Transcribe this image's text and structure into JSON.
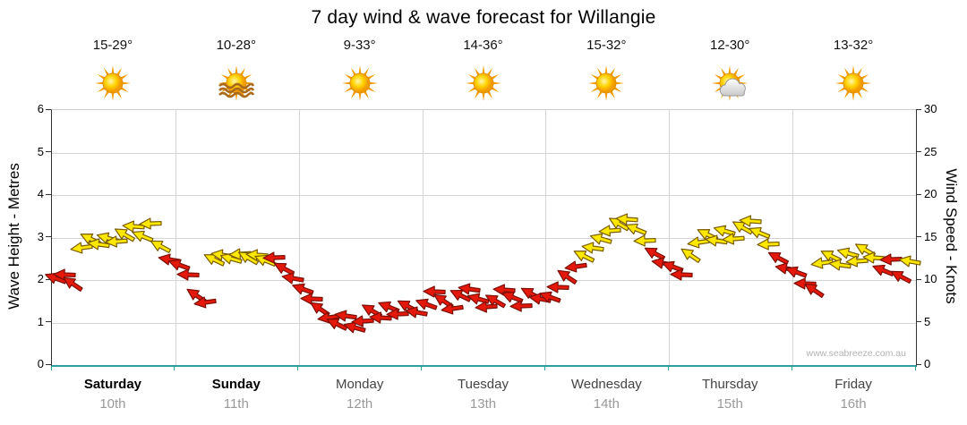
{
  "chart_data": {
    "type": "scatter",
    "title": "7 day wind & wave forecast for Willangie",
    "watermark": "www.seabreeze.com.au",
    "left_axis": {
      "label": "Wave Height - Metres",
      "ticks": [
        0,
        1,
        2,
        3,
        4,
        5,
        6
      ],
      "range": [
        0,
        6
      ]
    },
    "right_axis": {
      "label": "Wind Speed - Knots",
      "ticks": [
        0,
        5,
        10,
        15,
        20,
        25,
        30
      ],
      "range": [
        0,
        30
      ]
    },
    "grid": "on",
    "days": [
      {
        "name": "Saturday",
        "date": "10th",
        "temp": "15-29°",
        "icon": "sun-icon",
        "weekend": true
      },
      {
        "name": "Sunday",
        "date": "11th",
        "temp": "10-28°",
        "icon": "sun-waves-icon",
        "weekend": true
      },
      {
        "name": "Monday",
        "date": "12th",
        "temp": "9-33°",
        "icon": "sun-icon",
        "weekend": false
      },
      {
        "name": "Tuesday",
        "date": "13th",
        "temp": "14-36°",
        "icon": "sun-icon",
        "weekend": false
      },
      {
        "name": "Wednesday",
        "date": "14th",
        "temp": "15-32°",
        "icon": "sun-icon",
        "weekend": false
      },
      {
        "name": "Thursday",
        "date": "15th",
        "temp": "12-30°",
        "icon": "sun-cloud-icon",
        "weekend": false
      },
      {
        "name": "Friday",
        "date": "16th",
        "temp": "13-32°",
        "icon": "sun-icon",
        "weekend": false
      }
    ],
    "colors": {
      "arrow_red": "#e4190c",
      "arrow_red_outline": "#7a0e06",
      "arrow_yellow": "#ffe800",
      "arrow_yellow_outline": "#7a5c00",
      "gridline": "#d4d4d4",
      "bottom_axis": "#2e9e9e"
    },
    "wind_points_format": [
      "day_fraction",
      "wind_speed_knots",
      "color_R_red_Y_yellow",
      "arrow_direction_deg"
    ],
    "wind_points_by_day": [
      [
        [
          0.03,
          10.2,
          "R",
          200
        ],
        [
          0.1,
          10.6,
          "R",
          182
        ],
        [
          0.17,
          9.6,
          "R",
          214
        ],
        [
          0.24,
          13.8,
          "Y",
          172
        ],
        [
          0.31,
          14.8,
          "Y",
          206
        ],
        [
          0.38,
          14.2,
          "Y",
          188
        ],
        [
          0.45,
          15.0,
          "Y",
          196
        ],
        [
          0.52,
          14.5,
          "Y",
          176
        ],
        [
          0.59,
          15.4,
          "Y",
          210
        ],
        [
          0.66,
          16.3,
          "Y",
          184
        ],
        [
          0.73,
          15.2,
          "Y",
          202
        ],
        [
          0.8,
          16.6,
          "Y",
          178
        ],
        [
          0.88,
          14.0,
          "Y",
          208
        ],
        [
          0.95,
          12.4,
          "R",
          190
        ]
      ],
      [
        [
          0.03,
          11.8,
          "R",
          200
        ],
        [
          0.1,
          10.6,
          "R",
          182
        ],
        [
          0.17,
          8.2,
          "R",
          214
        ],
        [
          0.24,
          7.4,
          "R",
          172
        ],
        [
          0.31,
          12.4,
          "Y",
          206
        ],
        [
          0.38,
          12.9,
          "Y",
          188
        ],
        [
          0.45,
          12.5,
          "Y",
          196
        ],
        [
          0.52,
          13.1,
          "Y",
          176
        ],
        [
          0.59,
          12.6,
          "Y",
          210
        ],
        [
          0.66,
          13.0,
          "Y",
          184
        ],
        [
          0.73,
          12.3,
          "Y",
          202
        ],
        [
          0.8,
          12.6,
          "R",
          178
        ],
        [
          0.88,
          11.4,
          "R",
          208
        ],
        [
          0.95,
          10.2,
          "R",
          190
        ]
      ],
      [
        [
          0.03,
          9.0,
          "R",
          200
        ],
        [
          0.1,
          7.8,
          "R",
          182
        ],
        [
          0.17,
          6.6,
          "R",
          214
        ],
        [
          0.24,
          5.6,
          "R",
          172
        ],
        [
          0.31,
          4.8,
          "R",
          206
        ],
        [
          0.38,
          5.8,
          "R",
          188
        ],
        [
          0.45,
          4.4,
          "R",
          196
        ],
        [
          0.52,
          5.2,
          "R",
          176
        ],
        [
          0.59,
          6.4,
          "R",
          210
        ],
        [
          0.66,
          5.6,
          "R",
          184
        ],
        [
          0.73,
          6.8,
          "R",
          202
        ],
        [
          0.8,
          6.0,
          "R",
          178
        ],
        [
          0.88,
          7.0,
          "R",
          208
        ],
        [
          0.95,
          6.2,
          "R",
          190
        ]
      ],
      [
        [
          0.03,
          7.2,
          "R",
          200
        ],
        [
          0.1,
          8.6,
          "R",
          182
        ],
        [
          0.17,
          7.6,
          "R",
          214
        ],
        [
          0.24,
          6.6,
          "R",
          172
        ],
        [
          0.31,
          8.2,
          "R",
          206
        ],
        [
          0.38,
          9.0,
          "R",
          188
        ],
        [
          0.45,
          7.8,
          "R",
          196
        ],
        [
          0.52,
          6.8,
          "R",
          176
        ],
        [
          0.59,
          7.6,
          "R",
          210
        ],
        [
          0.66,
          8.8,
          "R",
          184
        ],
        [
          0.73,
          8.0,
          "R",
          202
        ],
        [
          0.8,
          7.0,
          "R",
          178
        ],
        [
          0.88,
          8.4,
          "R",
          208
        ],
        [
          0.95,
          7.8,
          "R",
          190
        ]
      ],
      [
        [
          0.03,
          8.0,
          "R",
          200
        ],
        [
          0.1,
          9.2,
          "R",
          182
        ],
        [
          0.17,
          10.4,
          "R",
          214
        ],
        [
          0.24,
          11.6,
          "R",
          172
        ],
        [
          0.31,
          12.8,
          "Y",
          206
        ],
        [
          0.38,
          13.8,
          "Y",
          188
        ],
        [
          0.45,
          14.8,
          "Y",
          196
        ],
        [
          0.52,
          15.8,
          "Y",
          176
        ],
        [
          0.59,
          16.6,
          "Y",
          210
        ],
        [
          0.66,
          17.2,
          "Y",
          184
        ],
        [
          0.73,
          16.0,
          "Y",
          202
        ],
        [
          0.8,
          14.6,
          "Y",
          178
        ],
        [
          0.88,
          13.2,
          "R",
          208
        ],
        [
          0.95,
          12.0,
          "R",
          190
        ]
      ],
      [
        [
          0.03,
          11.6,
          "R",
          200
        ],
        [
          0.1,
          10.6,
          "R",
          182
        ],
        [
          0.17,
          13.0,
          "Y",
          214
        ],
        [
          0.24,
          14.4,
          "Y",
          172
        ],
        [
          0.31,
          15.4,
          "Y",
          206
        ],
        [
          0.38,
          14.6,
          "Y",
          188
        ],
        [
          0.45,
          15.8,
          "Y",
          196
        ],
        [
          0.52,
          14.8,
          "Y",
          176
        ],
        [
          0.59,
          16.2,
          "Y",
          210
        ],
        [
          0.66,
          17.0,
          "Y",
          184
        ],
        [
          0.73,
          15.6,
          "Y",
          202
        ],
        [
          0.8,
          14.2,
          "Y",
          178
        ],
        [
          0.88,
          12.6,
          "R",
          208
        ],
        [
          0.95,
          11.4,
          "R",
          190
        ]
      ],
      [
        [
          0.03,
          11.0,
          "R",
          200
        ],
        [
          0.1,
          9.6,
          "R",
          182
        ],
        [
          0.17,
          8.8,
          "R",
          214
        ],
        [
          0.24,
          12.0,
          "Y",
          172
        ],
        [
          0.31,
          12.8,
          "Y",
          206
        ],
        [
          0.38,
          11.8,
          "Y",
          188
        ],
        [
          0.45,
          13.2,
          "Y",
          196
        ],
        [
          0.52,
          12.2,
          "Y",
          176
        ],
        [
          0.59,
          13.6,
          "Y",
          210
        ],
        [
          0.66,
          12.6,
          "Y",
          184
        ],
        [
          0.73,
          11.2,
          "R",
          202
        ],
        [
          0.8,
          12.4,
          "R",
          178
        ],
        [
          0.88,
          10.4,
          "R",
          208
        ],
        [
          0.95,
          12.2,
          "Y",
          190
        ]
      ]
    ]
  }
}
